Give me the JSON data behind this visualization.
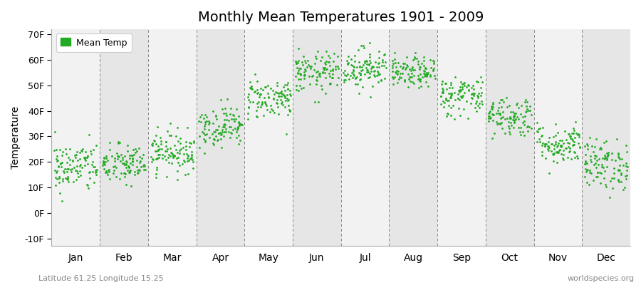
{
  "title": "Monthly Mean Temperatures 1901 - 2009",
  "ylabel": "Temperature",
  "xlabel_labels": [
    "Jan",
    "Feb",
    "Mar",
    "Apr",
    "May",
    "Jun",
    "Jul",
    "Aug",
    "Sep",
    "Oct",
    "Nov",
    "Dec"
  ],
  "yticks": [
    -10,
    0,
    10,
    20,
    30,
    40,
    50,
    60,
    70
  ],
  "ytick_labels": [
    "-10F",
    "0F",
    "10F",
    "20F",
    "30F",
    "40F",
    "50F",
    "60F",
    "70F"
  ],
  "ylim": [
    -13,
    72
  ],
  "dot_color": "#22aa22",
  "bg_colors": [
    "#f2f2f2",
    "#e6e6e6"
  ],
  "legend_label": "Mean Temp",
  "footnote_left": "Latitude 61.25 Longitude 15.25",
  "footnote_right": "worldspecies.org",
  "n_years": 109,
  "month_means": [
    18,
    19,
    24,
    34,
    45,
    55,
    57,
    55,
    46,
    38,
    27,
    19
  ],
  "month_stds": [
    5,
    4,
    4,
    4,
    4,
    4,
    4,
    3,
    4,
    4,
    4,
    5
  ]
}
